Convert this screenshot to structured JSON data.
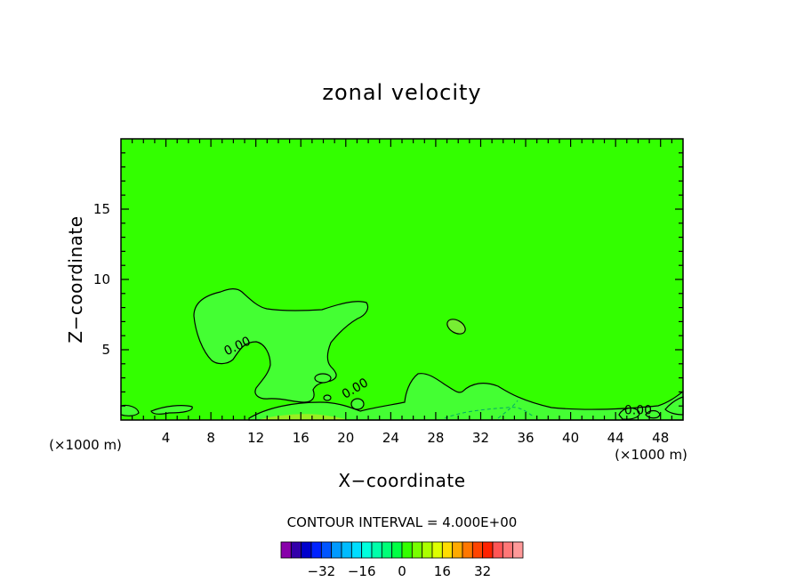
{
  "chart_data": {
    "type": "heatmap",
    "title": "zonal velocity",
    "xlabel": "X−coordinate",
    "ylabel": "Z−coordinate",
    "x_unit_left": "(×1000 m)",
    "x_unit_right": "(×1000 m)",
    "xlim": [
      0,
      50
    ],
    "ylim": [
      0,
      20
    ],
    "x_ticks": [
      {
        "value": 4,
        "label": "4"
      },
      {
        "value": 8,
        "label": "8"
      },
      {
        "value": 12,
        "label": "12"
      },
      {
        "value": 16,
        "label": "16"
      },
      {
        "value": 20,
        "label": "20"
      },
      {
        "value": 24,
        "label": "24"
      },
      {
        "value": 28,
        "label": "28"
      },
      {
        "value": 32,
        "label": "32"
      },
      {
        "value": 36,
        "label": "36"
      },
      {
        "value": 40,
        "label": "40"
      },
      {
        "value": 44,
        "label": "44"
      },
      {
        "value": 48,
        "label": "48"
      }
    ],
    "y_ticks": [
      {
        "value": 5,
        "label": "5"
      },
      {
        "value": 10,
        "label": "10"
      },
      {
        "value": 15,
        "label": "15"
      }
    ],
    "background_level_color": "#33ff00",
    "contour_labels": [
      {
        "x": 10.5,
        "z": 5.0,
        "text": "0.00"
      },
      {
        "x": 21.0,
        "z": 2.0,
        "text": "0.00"
      },
      {
        "x": 46.0,
        "z": 0.4,
        "text": "0.00"
      }
    ],
    "contour_interval_text": "CONTOUR INTERVAL = 4.000E+00",
    "colorbar": {
      "colors": [
        "#8800aa",
        "#3300aa",
        "#0000cc",
        "#0022ff",
        "#0055ff",
        "#0099ff",
        "#00bbff",
        "#00ddff",
        "#00ffdd",
        "#00ffaa",
        "#00ff77",
        "#00ff44",
        "#33ff00",
        "#77ff00",
        "#aaff00",
        "#ddff00",
        "#ffdd00",
        "#ffaa00",
        "#ff7700",
        "#ff4400",
        "#ff2200",
        "#ff5555",
        "#ff7777",
        "#ff9999"
      ],
      "labels": [
        {
          "value": -32,
          "label": "−32"
        },
        {
          "value": -16,
          "label": "−16"
        },
        {
          "value": 0,
          "label": "0"
        },
        {
          "value": 16,
          "label": "16"
        },
        {
          "value": 32,
          "label": "32"
        }
      ],
      "min": -48,
      "max": 48
    }
  }
}
